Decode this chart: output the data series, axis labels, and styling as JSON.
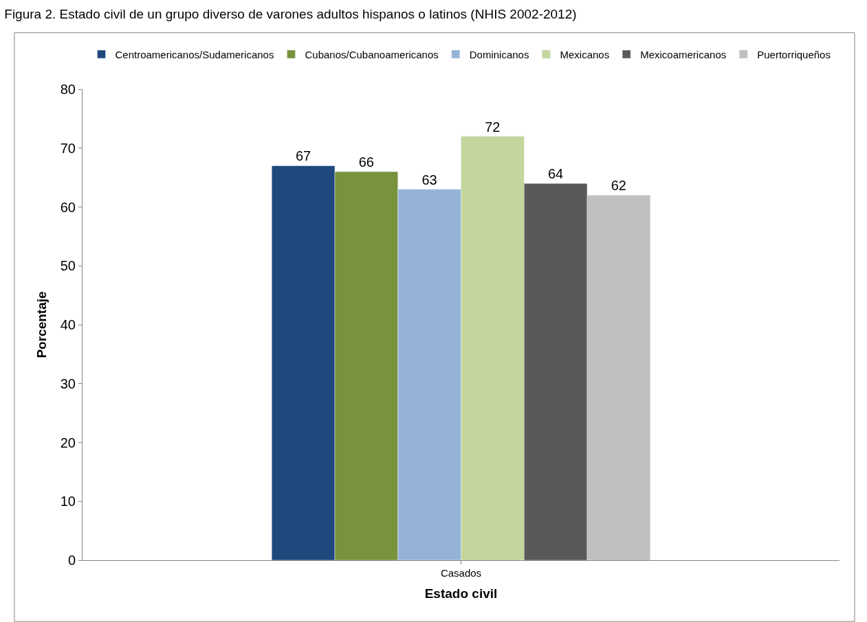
{
  "chart_data": {
    "type": "bar",
    "title": "Figura 2. Estado civil de un grupo diverso de varones adultos hispanos o latinos (NHIS 2002-2012)",
    "xlabel": "Estado civil",
    "ylabel": "Porcentaje",
    "categories": [
      "Casados"
    ],
    "series": [
      {
        "name": "Centroamericanos/Sudamericanos",
        "color": "#1f497d",
        "values": [
          67
        ]
      },
      {
        "name": "Cubanos/Cubanoamericanos",
        "color": "#77933c",
        "values": [
          66
        ]
      },
      {
        "name": "Dominicanos",
        "color": "#95b3d7",
        "values": [
          63
        ]
      },
      {
        "name": "Mexicanos",
        "color": "#c3d69b",
        "values": [
          72
        ]
      },
      {
        "name": "Mexicoamericanos",
        "color": "#595959",
        "values": [
          64
        ]
      },
      {
        "name": "Puertorriqueños",
        "color": "#bfbfbf",
        "values": [
          62
        ]
      }
    ],
    "ylim": [
      0,
      80
    ],
    "yticks": [
      0,
      10,
      20,
      30,
      40,
      50,
      60,
      70,
      80
    ],
    "data_labels": true,
    "legend": "top"
  }
}
